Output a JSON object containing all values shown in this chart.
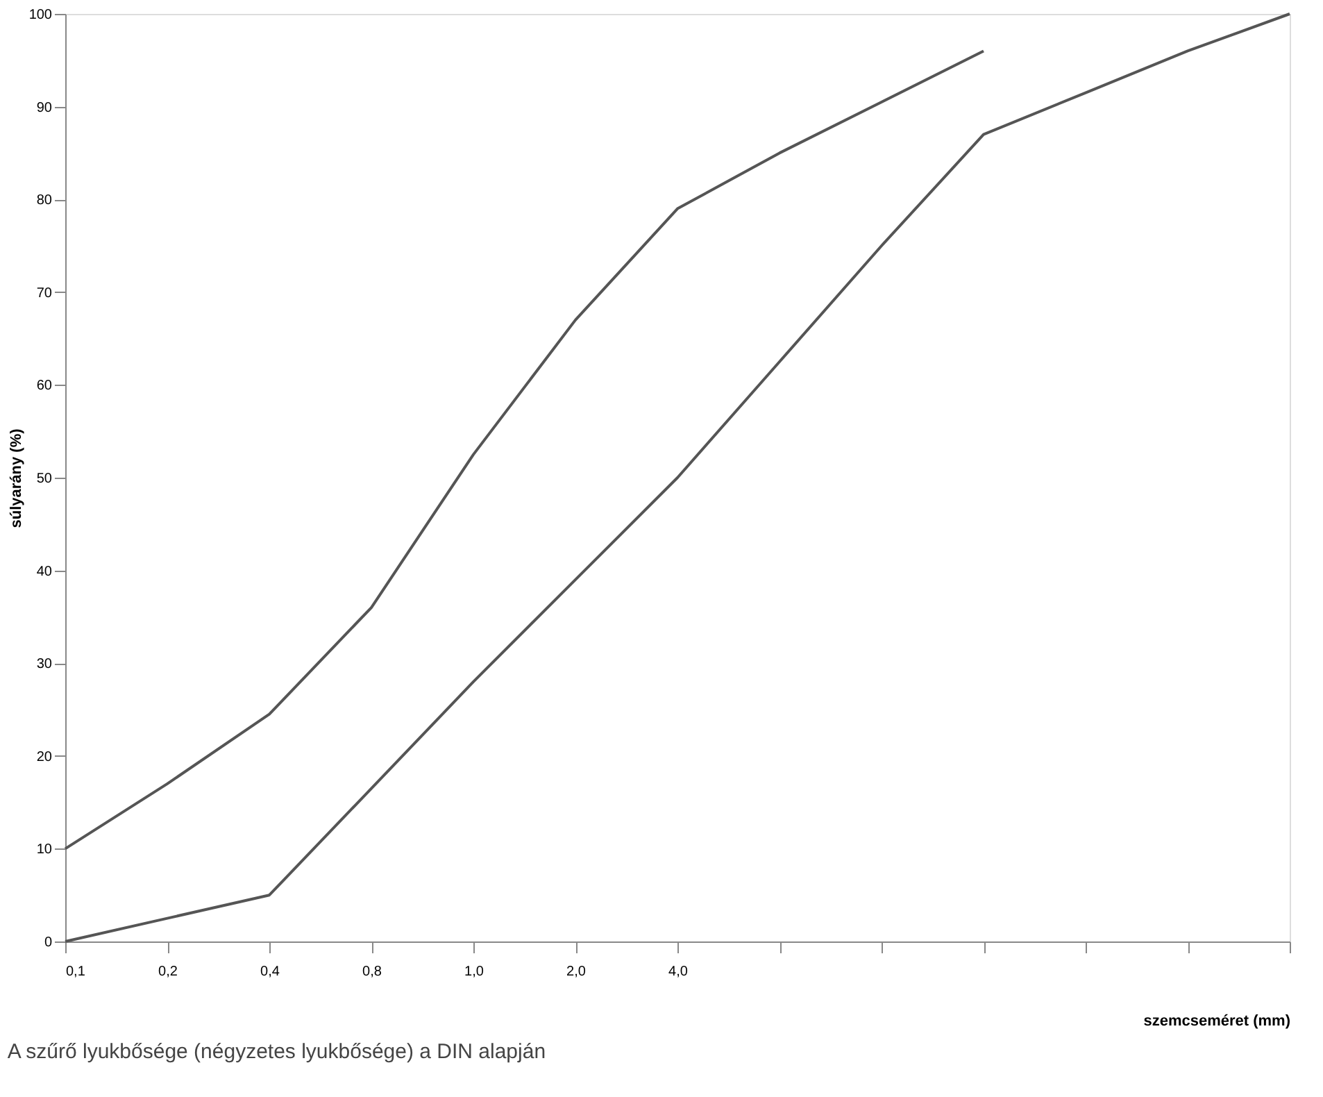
{
  "chart_data": {
    "type": "line",
    "xlabel": "szemcseméret (mm)",
    "ylabel": "súlyarány (%)",
    "annotations": [
      "A szűrő lyukbősége (négyzetes lyukbősége) a DIN alapján"
    ],
    "categories": [
      "0,1",
      "0,2",
      "0,4",
      "0,8",
      "1,0",
      "2,0",
      "4,0",
      null,
      null,
      null,
      null,
      null,
      null
    ],
    "ylim": [
      0,
      100
    ],
    "yticks": [
      0,
      10,
      20,
      30,
      40,
      50,
      60,
      70,
      80,
      90,
      100
    ],
    "grid": false,
    "legend": false,
    "marker": "none",
    "line_style": "solid",
    "series": [
      {
        "color": "#555555",
        "values": [
          10,
          17,
          24.5,
          36,
          52.5,
          67,
          79,
          85,
          90.5,
          96,
          null,
          null,
          null
        ]
      },
      {
        "color": "#555555",
        "values": [
          0,
          2.5,
          5,
          16.5,
          28,
          39,
          50,
          62.5,
          75,
          87,
          91.5,
          96,
          100
        ]
      }
    ]
  }
}
